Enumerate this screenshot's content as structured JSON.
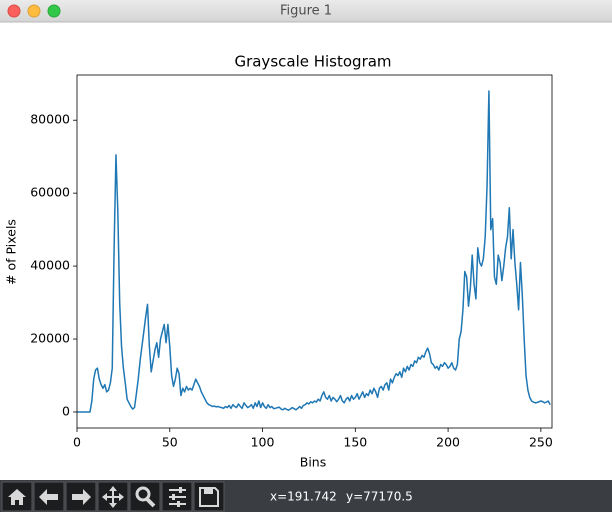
{
  "window": {
    "title": "Figure 1",
    "status_x": "x=191.742",
    "status_y": "y=77170.5"
  },
  "chart_data": {
    "type": "line",
    "title": "Grayscale Histogram",
    "x_label": "Bins",
    "y_label": "# of Pixels",
    "x": [
      0,
      1,
      2,
      3,
      4,
      5,
      6,
      7,
      8,
      9,
      10,
      11,
      12,
      13,
      14,
      15,
      16,
      17,
      18,
      19,
      20,
      21,
      22,
      23,
      24,
      25,
      26,
      27,
      28,
      29,
      30,
      31,
      32,
      33,
      34,
      35,
      36,
      37,
      38,
      39,
      40,
      41,
      42,
      43,
      44,
      45,
      46,
      47,
      48,
      49,
      50,
      51,
      52,
      53,
      54,
      55,
      56,
      57,
      58,
      59,
      60,
      61,
      62,
      63,
      64,
      65,
      66,
      67,
      68,
      69,
      70,
      71,
      72,
      73,
      74,
      75,
      76,
      77,
      78,
      79,
      80,
      81,
      82,
      83,
      84,
      85,
      86,
      87,
      88,
      89,
      90,
      91,
      92,
      93,
      94,
      95,
      96,
      97,
      98,
      99,
      100,
      101,
      102,
      103,
      104,
      105,
      106,
      107,
      108,
      109,
      110,
      111,
      112,
      113,
      114,
      115,
      116,
      117,
      118,
      119,
      120,
      121,
      122,
      123,
      124,
      125,
      126,
      127,
      128,
      129,
      130,
      131,
      132,
      133,
      134,
      135,
      136,
      137,
      138,
      139,
      140,
      141,
      142,
      143,
      144,
      145,
      146,
      147,
      148,
      149,
      150,
      151,
      152,
      153,
      154,
      155,
      156,
      157,
      158,
      159,
      160,
      161,
      162,
      163,
      164,
      165,
      166,
      167,
      168,
      169,
      170,
      171,
      172,
      173,
      174,
      175,
      176,
      177,
      178,
      179,
      180,
      181,
      182,
      183,
      184,
      185,
      186,
      187,
      188,
      189,
      190,
      191,
      192,
      193,
      194,
      195,
      196,
      197,
      198,
      199,
      200,
      201,
      202,
      203,
      204,
      205,
      206,
      207,
      208,
      209,
      210,
      211,
      212,
      213,
      214,
      215,
      216,
      217,
      218,
      219,
      220,
      221,
      222,
      223,
      224,
      225,
      226,
      227,
      228,
      229,
      230,
      231,
      232,
      233,
      234,
      235,
      236,
      237,
      238,
      239,
      240,
      241,
      242,
      243,
      244,
      245,
      246,
      247,
      248,
      249,
      250,
      251,
      252,
      253,
      254,
      255
    ],
    "series": [
      {
        "color": "#1f77b4",
        "values": [
          0,
          0,
          0,
          0,
          0,
          0,
          0,
          0,
          3000,
          9000,
          11500,
          12000,
          9000,
          7500,
          6500,
          7500,
          5500,
          6000,
          8000,
          12000,
          45000,
          70500,
          55000,
          30000,
          18000,
          12000,
          8000,
          3500,
          2500,
          1500,
          800,
          1200,
          5000,
          9000,
          14000,
          18000,
          22000,
          26000,
          29500,
          18000,
          11000,
          14000,
          17000,
          19000,
          15000,
          20000,
          22000,
          24000,
          19000,
          24000,
          18000,
          10000,
          7000,
          9000,
          12000,
          10500,
          4500,
          6500,
          5500,
          7000,
          6000,
          6500,
          6000,
          7500,
          9000,
          8000,
          7000,
          5500,
          4500,
          3500,
          2500,
          2000,
          1800,
          1500,
          1600,
          1400,
          1500,
          1300,
          1200,
          1000,
          1500,
          1200,
          1800,
          1000,
          2000,
          1500,
          1200,
          2200,
          1500,
          1000,
          2500,
          1800,
          1200,
          1500,
          2000,
          1000,
          2500,
          1500,
          3000,
          1200,
          2500,
          1500,
          1000,
          2000,
          1200,
          1500,
          900,
          1000,
          1200,
          1300,
          800,
          600,
          1000,
          700,
          500,
          800,
          1200,
          900,
          600,
          1000,
          1500,
          1000,
          1800,
          2000,
          2500,
          2200,
          2800,
          2500,
          3000,
          2700,
          3500,
          3000,
          4500,
          5500,
          4000,
          3500,
          4500,
          3000,
          4000,
          3500,
          2800,
          3500,
          4500,
          3000,
          2500,
          3500,
          4000,
          3000,
          4500,
          3500,
          4000,
          5000,
          3500,
          4500,
          5500,
          4000,
          5000,
          4500,
          6000,
          5000,
          6500,
          5500,
          4000,
          6500,
          7000,
          6000,
          7500,
          8000,
          6000,
          9000,
          8000,
          9500,
          10500,
          10000,
          11000,
          9500,
          12000,
          11000,
          12500,
          11500,
          13000,
          12500,
          14000,
          13500,
          15000,
          14500,
          15500,
          15000,
          16500,
          17500,
          16000,
          13500,
          13000,
          12000,
          12500,
          11500,
          13000,
          12500,
          13500,
          13000,
          12000,
          12500,
          13500,
          12000,
          11500,
          13000,
          20000,
          22000,
          28000,
          38500,
          37000,
          29000,
          34000,
          43000,
          35000,
          31000,
          45000,
          41000,
          40000,
          42000,
          48000,
          62000,
          88000,
          50000,
          53000,
          37000,
          35000,
          43000,
          41000,
          36000,
          40000,
          45000,
          48000,
          56000,
          42000,
          50000,
          41000,
          35000,
          28000,
          41000,
          32000,
          20000,
          10000,
          6000,
          4000,
          3000,
          2700,
          2500,
          2600,
          2800,
          3000,
          2800,
          2500,
          2700,
          3000,
          2000
        ]
      }
    ],
    "xlim": [
      0,
      256
    ],
    "ylim": [
      -4400,
      92400
    ],
    "xticks": [
      0,
      50,
      100,
      150,
      200,
      250
    ],
    "yticks": [
      0,
      20000,
      40000,
      60000,
      80000
    ]
  }
}
